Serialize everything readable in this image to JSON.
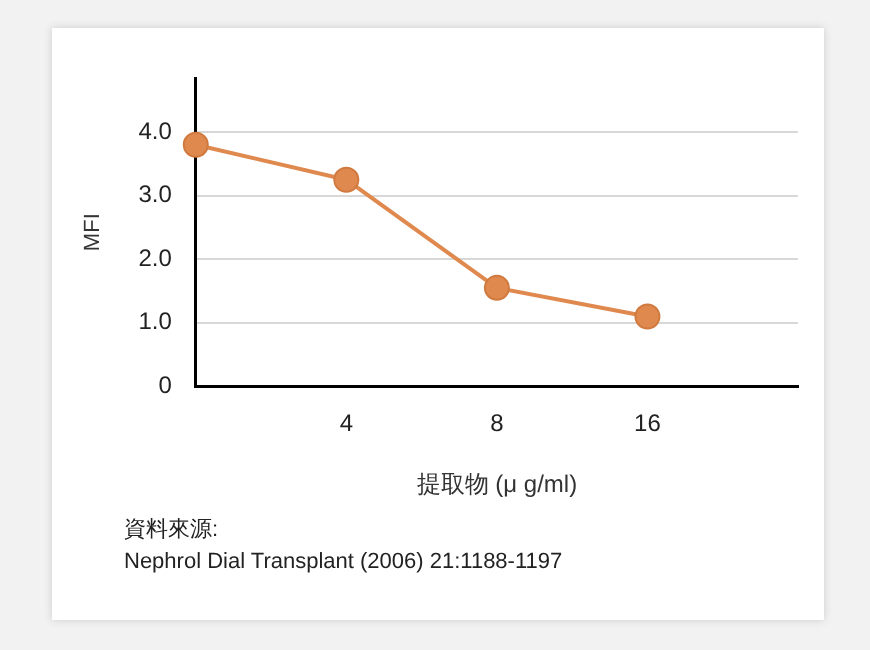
{
  "chart_data": {
    "type": "line",
    "xlabel": "提取物 (μ g/ml)",
    "ylabel": "MFI",
    "categories": [
      null,
      "4",
      "8",
      "16",
      null
    ],
    "series": [
      {
        "color": "#e0894f",
        "values": [
          3.8,
          3.25,
          1.55,
          1.1,
          null
        ]
      }
    ],
    "ylim": [
      0,
      4.85
    ],
    "yticks": [
      {
        "value": 0,
        "label": "0"
      },
      {
        "value": 1,
        "label": "1.0"
      },
      {
        "value": 2,
        "label": "2.0"
      },
      {
        "value": 3,
        "label": "3.0"
      },
      {
        "value": 4,
        "label": "4.0"
      }
    ],
    "grid": "y",
    "legend": false,
    "marker": "circle",
    "line_style": "solid",
    "annotations": [
      "資料來源:",
      "Nephrol Dial Transplant (2006) 21:1188-1197"
    ]
  }
}
